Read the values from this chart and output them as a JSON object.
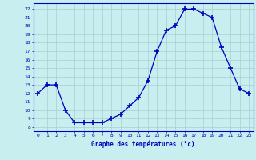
{
  "hours": [
    0,
    1,
    2,
    3,
    4,
    5,
    6,
    7,
    8,
    9,
    10,
    11,
    12,
    13,
    14,
    15,
    16,
    17,
    18,
    19,
    20,
    21,
    22,
    23
  ],
  "temps": [
    12,
    13,
    13,
    10,
    8.5,
    8.5,
    8.5,
    8.5,
    9.0,
    9.5,
    10.5,
    11.5,
    13.5,
    17,
    19.5,
    20,
    22,
    22,
    21.5,
    21,
    17.5,
    15,
    12.5,
    12
  ],
  "ylabel_vals": [
    8,
    9,
    10,
    11,
    12,
    13,
    14,
    15,
    16,
    17,
    18,
    19,
    20,
    21,
    22
  ],
  "ylim": [
    7.5,
    22.7
  ],
  "xlim": [
    -0.5,
    23.5
  ],
  "line_color": "#0000bb",
  "marker": "+",
  "marker_size": 4,
  "bg_color": "#c8eef0",
  "grid_color": "#a8ced0",
  "xlabel": "Graphe des températures (°c)",
  "tick_label_color": "#0000bb",
  "axis_color": "#0000bb"
}
